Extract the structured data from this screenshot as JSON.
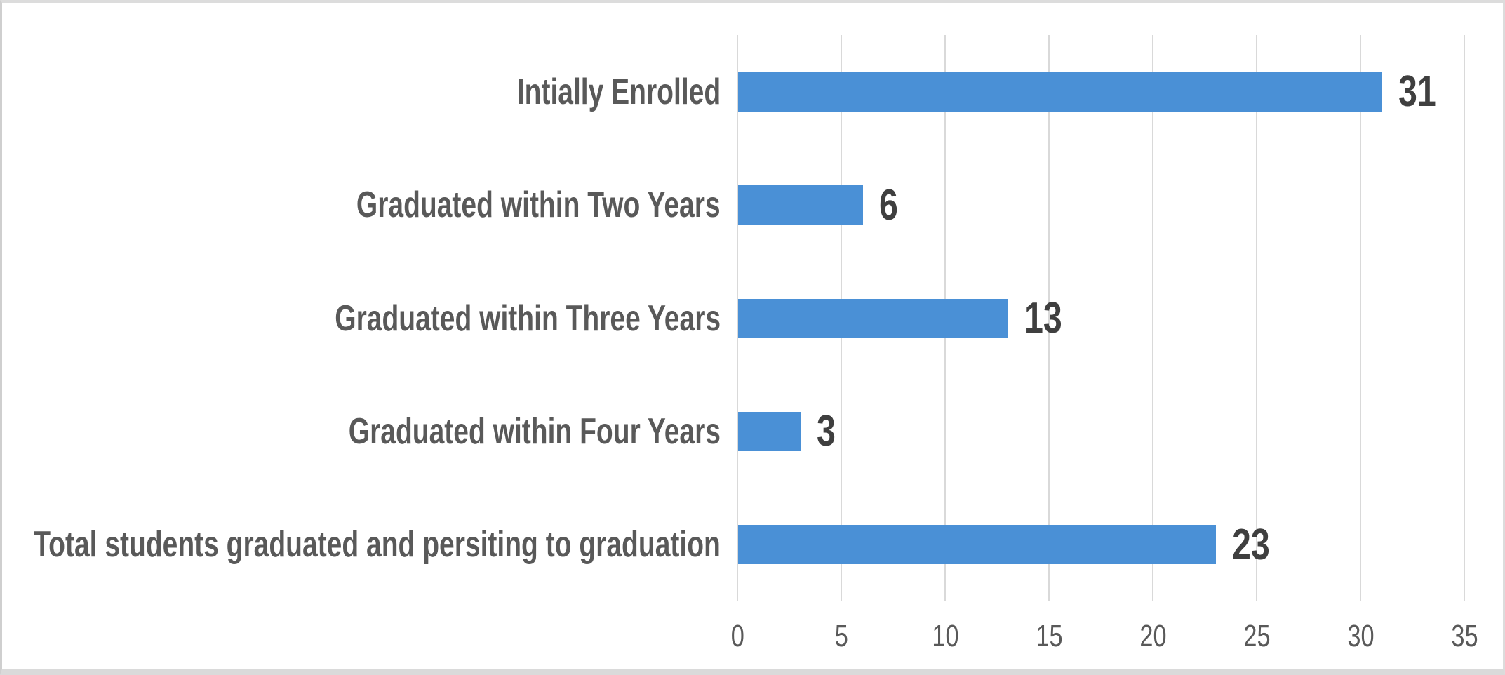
{
  "chart_data": {
    "type": "bar",
    "orientation": "horizontal",
    "title": "",
    "xlabel": "",
    "ylabel": "",
    "categories": [
      "Intially Enrolled",
      "Graduated within Two Years",
      "Graduated within Three Years",
      "Graduated within Four Years",
      "Total students graduated and persiting to graduation"
    ],
    "values": [
      31,
      6,
      13,
      3,
      23
    ],
    "data_labels": [
      "31",
      "6",
      "13",
      "3",
      "23"
    ],
    "xlim": [
      0,
      35
    ],
    "xticks": [
      0,
      5,
      10,
      15,
      20,
      25,
      30,
      35
    ],
    "tick_labels": [
      "0",
      "5",
      "10",
      "15",
      "20",
      "25",
      "30",
      "35"
    ],
    "grid": true,
    "legend": null,
    "colors": {
      "bar": "#4a90d6",
      "category_label": "#595959",
      "value_label": "#3f3f3f",
      "tick_label": "#595959",
      "gridline": "#d9d9d9",
      "background": "#ffffff",
      "frame_border": "#d9d9d9"
    }
  }
}
